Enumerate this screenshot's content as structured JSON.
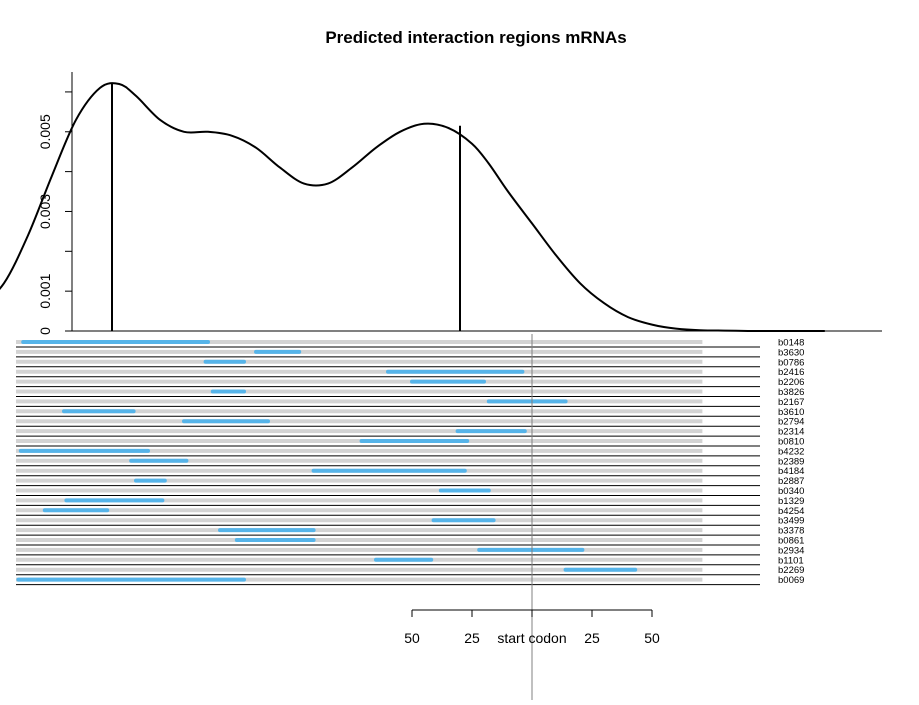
{
  "chart_data": {
    "type": "line",
    "title": "Predicted interaction regions mRNAs",
    "density_panel": {
      "y_axis": {
        "range": [
          0,
          0.0065
        ],
        "major_ticks": [
          0,
          0.001,
          0.003,
          0.005
        ],
        "major_tick_labels": [
          "0",
          "0.001",
          "0.003",
          "0.005"
        ],
        "minor_ticks": [
          0.002,
          0.004,
          0.006
        ]
      },
      "x_range": [
        -230,
        155
      ],
      "density": {
        "x": [
          -230,
          -220,
          -210,
          -200,
          -190,
          -180,
          -172,
          -165,
          -155,
          -145,
          -135,
          -125,
          -115,
          -105,
          -95,
          -85,
          -75,
          -65,
          -55,
          -45,
          -35,
          -25,
          -18,
          -10,
          0,
          10,
          20,
          30,
          40,
          50,
          60,
          70,
          80,
          90,
          100,
          110,
          122
        ],
        "y": [
          0.0006,
          0.0012,
          0.0024,
          0.0039,
          0.0053,
          0.0061,
          0.0062,
          0.0059,
          0.0053,
          0.005,
          0.005,
          0.0049,
          0.0046,
          0.0041,
          0.0037,
          0.0037,
          0.0041,
          0.0046,
          0.005,
          0.0052,
          0.0051,
          0.0047,
          0.0042,
          0.0035,
          0.0027,
          0.0019,
          0.0012,
          0.0007,
          0.00035,
          0.00016,
          6e-05,
          2e-05,
          1e-05,
          0.0,
          0.0,
          0.0,
          0.0
        ]
      },
      "peak_lines": [
        {
          "x": -175,
          "y": 0.0062
        },
        {
          "x": -30,
          "y": 0.00515
        }
      ]
    },
    "regions_panel": {
      "track_start": -215,
      "track_end": 71,
      "genes": [
        {
          "name": "b0148",
          "start": -212,
          "end": -135
        },
        {
          "name": "b3630",
          "start": -115,
          "end": -97
        },
        {
          "name": "b0786",
          "start": -136,
          "end": -120
        },
        {
          "name": "b2416",
          "start": -60,
          "end": -4
        },
        {
          "name": "b2206",
          "start": -50,
          "end": -20
        },
        {
          "name": "b3826",
          "start": -133,
          "end": -120
        },
        {
          "name": "b2167",
          "start": -18,
          "end": 14
        },
        {
          "name": "b3610",
          "start": -195,
          "end": -166
        },
        {
          "name": "b2794",
          "start": -145,
          "end": -110
        },
        {
          "name": "b2314",
          "start": -31,
          "end": -3
        },
        {
          "name": "b0810",
          "start": -71,
          "end": -27
        },
        {
          "name": "b4232",
          "start": -213,
          "end": -160
        },
        {
          "name": "b2389",
          "start": -167,
          "end": -144
        },
        {
          "name": "b4184",
          "start": -91,
          "end": -28
        },
        {
          "name": "b2887",
          "start": -165,
          "end": -153
        },
        {
          "name": "b0340",
          "start": -38,
          "end": -18
        },
        {
          "name": "b1329",
          "start": -194,
          "end": -154
        },
        {
          "name": "b4254",
          "start": -203,
          "end": -177
        },
        {
          "name": "b3499",
          "start": -41,
          "end": -16
        },
        {
          "name": "b3378",
          "start": -130,
          "end": -91
        },
        {
          "name": "b0861",
          "start": -123,
          "end": -91
        },
        {
          "name": "b2934",
          "start": -22,
          "end": 21
        },
        {
          "name": "b1101",
          "start": -65,
          "end": -42
        },
        {
          "name": "b2269",
          "start": 14,
          "end": 43
        },
        {
          "name": "b0069",
          "start": -214,
          "end": -120
        }
      ]
    },
    "bottom_axis": {
      "ticks": [
        {
          "value": -50,
          "label": "50"
        },
        {
          "value": -25,
          "label": "25"
        },
        {
          "value": 0,
          "label": "start codon"
        },
        {
          "value": 25,
          "label": "25"
        },
        {
          "value": 50,
          "label": "50"
        }
      ],
      "range": [
        -50,
        50
      ]
    },
    "colors": {
      "density_line": "#000000",
      "region_bar": "#56B4E9",
      "track": "#D3D3D3",
      "start_codon_line": "#808080"
    }
  }
}
